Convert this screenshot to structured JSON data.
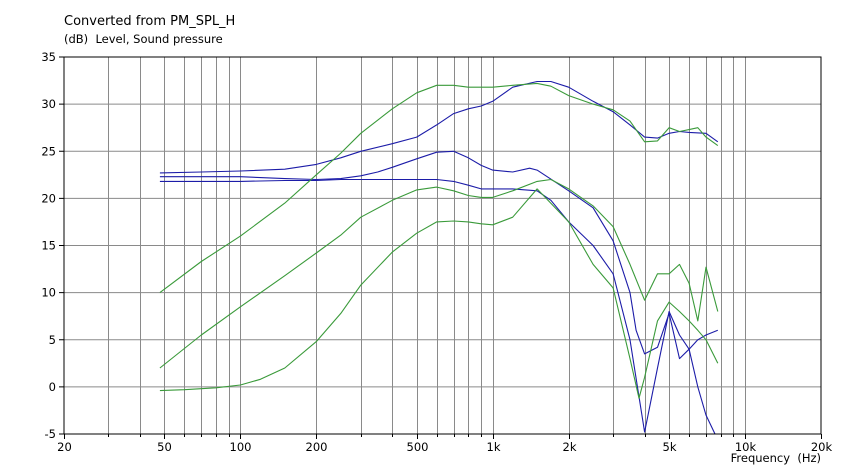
{
  "chart_data": {
    "type": "line",
    "title": "Converted from PM_SPL_H",
    "subtitle": "(dB)  Level, Sound pressure",
    "xlabel": "Frequency  (Hz)",
    "ylabel": "",
    "xscale": "log",
    "xlim": [
      20,
      20000
    ],
    "ylim": [
      -5,
      35
    ],
    "grid": true,
    "x_ticks": [
      {
        "value": 20,
        "label": "20"
      },
      {
        "value": 50,
        "label": "50"
      },
      {
        "value": 100,
        "label": "100"
      },
      {
        "value": 200,
        "label": "200"
      },
      {
        "value": 500,
        "label": "500"
      },
      {
        "value": 1000,
        "label": "1k"
      },
      {
        "value": 2000,
        "label": "2k"
      },
      {
        "value": 5000,
        "label": "5k"
      },
      {
        "value": 10000,
        "label": "10k"
      },
      {
        "value": 20000,
        "label": "20k"
      }
    ],
    "y_ticks": [
      {
        "value": 35,
        "label": "35"
      },
      {
        "value": 30,
        "label": "30"
      },
      {
        "value": 25,
        "label": "25"
      },
      {
        "value": 20,
        "label": "20"
      },
      {
        "value": 15,
        "label": "15"
      },
      {
        "value": 10,
        "label": "10"
      },
      {
        "value": 5,
        "label": "5"
      },
      {
        "value": 0,
        "label": "0"
      },
      {
        "value": -5,
        "label": "-5"
      }
    ],
    "x_minor_ticks": [
      30,
      40,
      60,
      70,
      80,
      90,
      300,
      400,
      600,
      700,
      800,
      900,
      3000,
      4000,
      6000,
      7000,
      8000,
      9000
    ],
    "colors": {
      "blue": "#1c1ca8",
      "green": "#3a9a3a",
      "grid": "#8a8a8a"
    },
    "series": [
      {
        "color": "blue",
        "x": [
          48,
          70,
          100,
          150,
          200,
          250,
          300,
          400,
          500,
          600,
          700,
          800,
          900,
          1000,
          1200,
          1500,
          1700,
          2000,
          2500,
          3000,
          3500,
          4000,
          4500,
          5000,
          5500,
          6000,
          7000,
          7800
        ],
        "values": [
          22.7,
          22.8,
          22.9,
          23.1,
          23.6,
          24.3,
          25.0,
          25.8,
          26.5,
          27.8,
          29.0,
          29.5,
          29.8,
          30.3,
          31.8,
          32.4,
          32.4,
          31.8,
          30.3,
          29.2,
          27.8,
          26.5,
          26.4,
          26.9,
          27.1,
          27.0,
          26.9,
          26.0
        ]
      },
      {
        "color": "blue",
        "x": [
          48,
          70,
          100,
          150,
          200,
          250,
          300,
          350,
          400,
          500,
          600,
          700,
          800,
          900,
          1000,
          1200,
          1400,
          1500,
          2000,
          2500,
          3000,
          3500,
          3700,
          4000,
          4500,
          5000,
          5500,
          6000,
          6500,
          7000,
          7800
        ],
        "values": [
          22.3,
          22.3,
          22.3,
          22.1,
          22.0,
          22.1,
          22.4,
          22.8,
          23.3,
          24.2,
          24.9,
          25.0,
          24.3,
          23.5,
          23.0,
          22.8,
          23.2,
          23.0,
          20.8,
          19.0,
          15.5,
          10.0,
          6.0,
          3.5,
          4.2,
          7.8,
          3.0,
          4.0,
          5.0,
          5.5,
          6.0
        ]
      },
      {
        "color": "blue",
        "x": [
          48,
          70,
          100,
          150,
          200,
          250,
          300,
          400,
          500,
          600,
          700,
          800,
          900,
          1000,
          1200,
          1500,
          1700,
          2000,
          2500,
          3000,
          3500,
          4000,
          4500,
          5000,
          5500,
          6000,
          6500,
          7000,
          7600
        ],
        "values": [
          21.8,
          21.8,
          21.8,
          21.9,
          21.9,
          22.0,
          22.0,
          22.0,
          22.0,
          22.0,
          21.8,
          21.4,
          21.0,
          21.0,
          21.0,
          20.8,
          19.8,
          17.5,
          15.0,
          12.0,
          5.0,
          -4.8,
          2.0,
          8.0,
          5.5,
          4.0,
          0.0,
          -3.0,
          -5.0
        ]
      },
      {
        "color": "green",
        "x": [
          48,
          70,
          100,
          150,
          200,
          250,
          300,
          400,
          500,
          600,
          700,
          800,
          900,
          1000,
          1200,
          1500,
          1700,
          2000,
          2500,
          3000,
          3500,
          4000,
          4500,
          5000,
          5500,
          6000,
          6500,
          7000,
          7800
        ],
        "values": [
          10.0,
          13.3,
          16.0,
          19.5,
          22.5,
          24.8,
          26.9,
          29.5,
          31.2,
          32.0,
          32.0,
          31.8,
          31.8,
          31.8,
          32.0,
          32.2,
          31.9,
          30.9,
          30.0,
          29.4,
          28.2,
          26.0,
          26.1,
          27.5,
          27.1,
          27.3,
          27.5,
          26.5,
          25.6
        ]
      },
      {
        "color": "green",
        "x": [
          48,
          70,
          100,
          150,
          200,
          250,
          300,
          400,
          500,
          600,
          700,
          800,
          900,
          1000,
          1200,
          1500,
          1700,
          2000,
          2500,
          3000,
          3500,
          4000,
          4500,
          5000,
          5500,
          6000,
          6500,
          7000,
          7800
        ],
        "values": [
          2.0,
          5.5,
          8.5,
          11.8,
          14.2,
          16.1,
          18.0,
          19.8,
          20.9,
          21.2,
          20.8,
          20.3,
          20.1,
          20.1,
          20.8,
          21.8,
          22.0,
          21.0,
          19.2,
          17.0,
          13.0,
          9.2,
          12.0,
          12.0,
          13.0,
          11.0,
          7.0,
          12.7,
          8.0
        ]
      },
      {
        "color": "green",
        "x": [
          48,
          60,
          80,
          100,
          120,
          150,
          200,
          250,
          300,
          400,
          500,
          600,
          700,
          800,
          900,
          1000,
          1200,
          1500,
          2000,
          2500,
          3000,
          3500,
          3800,
          4000,
          4500,
          5000,
          5500,
          6000,
          6500,
          7000,
          7800
        ],
        "values": [
          -0.4,
          -0.3,
          -0.1,
          0.2,
          0.8,
          2.0,
          4.8,
          7.8,
          10.8,
          14.3,
          16.3,
          17.5,
          17.6,
          17.5,
          17.3,
          17.2,
          18.0,
          21.0,
          17.5,
          13.0,
          10.5,
          3.0,
          -1.2,
          1.0,
          7.0,
          9.0,
          8.0,
          7.0,
          6.0,
          5.0,
          2.5
        ]
      }
    ]
  }
}
